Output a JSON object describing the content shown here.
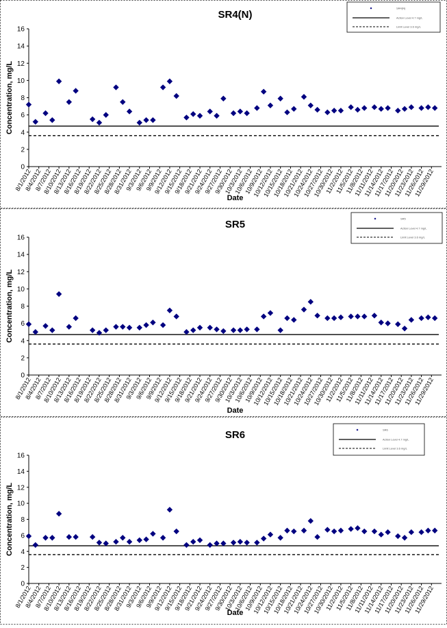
{
  "chart_data": [
    {
      "type": "scatter",
      "title": "SR4(N)",
      "xlabel": "Date",
      "ylabel": "Concentration, mg/L",
      "ylim": [
        0,
        16
      ],
      "yticks": [
        0,
        2,
        4,
        6,
        8,
        10,
        12,
        14,
        16
      ],
      "grid": false,
      "legend_position": "top-right",
      "marker_color": "#000080",
      "x_tick_labels": [
        "8/1/2012",
        "8/4/2012",
        "8/7/2012",
        "8/10/2012",
        "8/13/2012",
        "8/16/2012",
        "8/19/2012",
        "8/22/2012",
        "8/25/2012",
        "8/28/2012",
        "8/31/2012",
        "9/3/2012",
        "9/6/2012",
        "9/9/2012",
        "9/12/2012",
        "9/15/2012",
        "9/18/2012",
        "9/21/2012",
        "9/24/2012",
        "9/27/2012",
        "9/30/2012",
        "10/3/2012",
        "10/6/2012",
        "10/9/2012",
        "10/12/2012",
        "10/15/2012",
        "10/18/2012",
        "10/21/2012",
        "10/24/2012",
        "10/27/2012",
        "10/30/2012",
        "11/2/2012",
        "11/5/2012",
        "11/8/2012",
        "11/11/2012",
        "11/14/2012",
        "11/17/2012",
        "11/20/2012",
        "11/23/2012",
        "11/26/2012",
        "11/29/2012"
      ],
      "x_range": [
        "8/1/2012",
        "12/2/2012"
      ],
      "x": [
        "8/1/2012",
        "8/3/2012",
        "8/6/2012",
        "8/8/2012",
        "8/10/2012",
        "8/13/2012",
        "8/15/2012",
        "8/20/2012",
        "8/22/2012",
        "8/24/2012",
        "8/27/2012",
        "8/29/2012",
        "8/31/2012",
        "9/3/2012",
        "9/5/2012",
        "9/7/2012",
        "9/10/2012",
        "9/12/2012",
        "9/14/2012",
        "9/17/2012",
        "9/19/2012",
        "9/21/2012",
        "9/24/2012",
        "9/26/2012",
        "9/28/2012",
        "10/1/2012",
        "10/3/2012",
        "10/5/2012",
        "10/8/2012",
        "10/10/2012",
        "10/12/2012",
        "10/15/2012",
        "10/17/2012",
        "10/19/2012",
        "10/22/2012",
        "10/24/2012",
        "10/26/2012",
        "10/29/2012",
        "10/31/2012",
        "11/2/2012",
        "11/5/2012",
        "11/7/2012",
        "11/9/2012",
        "11/12/2012",
        "11/14/2012",
        "11/16/2012",
        "11/19/2012",
        "11/21/2012",
        "11/23/2012",
        "11/26/2012",
        "11/28/2012",
        "11/30/2012"
      ],
      "y": [
        7.2,
        5.2,
        6.2,
        5.4,
        9.9,
        7.5,
        8.8,
        5.5,
        5.1,
        6,
        9.2,
        7.5,
        6.4,
        5.1,
        5.4,
        5.4,
        9.2,
        9.9,
        8.2,
        5.7,
        6.1,
        5.9,
        6.4,
        5.9,
        7.9,
        6.2,
        6.4,
        6.2,
        6.8,
        8.7,
        7.1,
        7.9,
        6.3,
        6.7,
        8.1,
        7.1,
        6.6,
        6.3,
        6.5,
        6.5,
        6.9,
        6.6,
        6.8,
        6.9,
        6.7,
        6.8,
        6.5,
        6.7,
        6.9,
        6.8,
        6.9,
        6.8
      ],
      "reference_lines": [
        {
          "y": 4.7,
          "style": "solid"
        },
        {
          "y": 3.6,
          "style": "dashed"
        }
      ],
      "legend_entries": [
        "SR4(N)",
        "Action Level 4.7 mg/L",
        "Limit Level 3.6 mg/L"
      ]
    },
    {
      "type": "scatter",
      "title": "SR5",
      "xlabel": "Date",
      "ylabel": "Concentration, mg/L",
      "ylim": [
        0,
        16
      ],
      "yticks": [
        0,
        2,
        4,
        6,
        8,
        10,
        12,
        14,
        16
      ],
      "grid": false,
      "legend_position": "top-right",
      "marker_color": "#000080",
      "x_tick_labels": [
        "8/1/2012",
        "8/4/2012",
        "8/7/2012",
        "8/10/2012",
        "8/13/2012",
        "8/16/2012",
        "8/19/2012",
        "8/22/2012",
        "8/25/2012",
        "8/28/2012",
        "8/31/2012",
        "9/3/2012",
        "9/6/2012",
        "9/9/2012",
        "9/12/2012",
        "9/15/2012",
        "9/18/2012",
        "9/21/2012",
        "9/24/2012",
        "9/27/2012",
        "9/30/2012",
        "10/3/2012",
        "10/6/2012",
        "10/9/2012",
        "10/12/2012",
        "10/15/2012",
        "10/18/2012",
        "10/21/2012",
        "10/24/2012",
        "10/27/2012",
        "10/30/2012",
        "11/2/2012",
        "11/5/2012",
        "11/8/2012",
        "11/11/2012",
        "11/14/2012",
        "11/17/2012",
        "11/20/2012",
        "11/23/2012",
        "11/26/2012",
        "11/29/2012"
      ],
      "x_range": [
        "8/1/2012",
        "12/2/2012"
      ],
      "x": [
        "8/1/2012",
        "8/3/2012",
        "8/6/2012",
        "8/8/2012",
        "8/10/2012",
        "8/13/2012",
        "8/15/2012",
        "8/20/2012",
        "8/22/2012",
        "8/24/2012",
        "8/27/2012",
        "8/29/2012",
        "8/31/2012",
        "9/3/2012",
        "9/5/2012",
        "9/7/2012",
        "9/10/2012",
        "9/12/2012",
        "9/14/2012",
        "9/17/2012",
        "9/19/2012",
        "9/21/2012",
        "9/24/2012",
        "9/26/2012",
        "9/28/2012",
        "10/1/2012",
        "10/3/2012",
        "10/5/2012",
        "10/8/2012",
        "10/10/2012",
        "10/12/2012",
        "10/15/2012",
        "10/17/2012",
        "10/19/2012",
        "10/22/2012",
        "10/24/2012",
        "10/26/2012",
        "10/29/2012",
        "10/31/2012",
        "11/2/2012",
        "11/5/2012",
        "11/7/2012",
        "11/9/2012",
        "11/12/2012",
        "11/14/2012",
        "11/16/2012",
        "11/19/2012",
        "11/21/2012",
        "11/23/2012",
        "11/26/2012",
        "11/28/2012",
        "11/30/2012"
      ],
      "y": [
        5.9,
        5,
        5.7,
        5.2,
        9.4,
        5.6,
        6.6,
        5.2,
        4.9,
        5.2,
        5.6,
        5.6,
        5.5,
        5.5,
        5.8,
        6.1,
        5.8,
        7.5,
        6.8,
        5,
        5.2,
        5.5,
        5.5,
        5.3,
        5.1,
        5.2,
        5.2,
        5.3,
        5.3,
        6.8,
        7.2,
        5.2,
        6.6,
        6.4,
        7.6,
        8.5,
        6.9,
        6.6,
        6.6,
        6.7,
        6.8,
        6.8,
        6.8,
        6.9,
        6.1,
        6,
        5.9,
        5.4,
        6.4,
        6.6,
        6.7,
        6.6
      ],
      "reference_lines": [
        {
          "y": 4.7,
          "style": "solid"
        },
        {
          "y": 3.6,
          "style": "dashed"
        }
      ],
      "legend_entries": [
        "SR5",
        "Action Level 4.7 mg/L",
        "Limit Level 3.6 mg/L"
      ]
    },
    {
      "type": "scatter",
      "title": "SR6",
      "xlabel": "Date",
      "ylabel": "Concentration, mg/L",
      "ylim": [
        0,
        16
      ],
      "yticks": [
        0,
        2,
        4,
        6,
        8,
        10,
        12,
        14,
        16
      ],
      "grid": false,
      "legend_position": "top-right",
      "marker_color": "#000080",
      "x_tick_labels": [
        "8/1/2012",
        "8/4/2012",
        "8/7/2012",
        "8/10/2012",
        "8/13/2012",
        "8/16/2012",
        "8/19/2012",
        "8/22/2012",
        "8/25/2012",
        "8/28/2012",
        "8/31/2012",
        "9/3/2012",
        "9/6/2012",
        "9/9/2012",
        "9/12/2012",
        "9/15/2012",
        "9/18/2012",
        "9/21/2012",
        "9/24/2012",
        "9/27/2012",
        "9/30/2012",
        "10/3/2012",
        "10/6/2012",
        "10/9/2012",
        "10/12/2012",
        "10/15/2012",
        "10/18/2012",
        "10/21/2012",
        "10/24/2012",
        "10/27/2012",
        "10/30/2012",
        "11/2/2012",
        "11/5/2012",
        "11/8/2012",
        "11/11/2012",
        "11/14/2012",
        "11/17/2012",
        "11/20/2012",
        "11/23/2012",
        "11/26/2012",
        "11/29/2012"
      ],
      "x_range": [
        "8/1/2012",
        "12/2/2012"
      ],
      "x": [
        "8/1/2012",
        "8/3/2012",
        "8/6/2012",
        "8/8/2012",
        "8/10/2012",
        "8/13/2012",
        "8/15/2012",
        "8/20/2012",
        "8/22/2012",
        "8/24/2012",
        "8/27/2012",
        "8/29/2012",
        "8/31/2012",
        "9/3/2012",
        "9/5/2012",
        "9/7/2012",
        "9/10/2012",
        "9/12/2012",
        "9/14/2012",
        "9/17/2012",
        "9/19/2012",
        "9/21/2012",
        "9/24/2012",
        "9/26/2012",
        "9/28/2012",
        "10/1/2012",
        "10/3/2012",
        "10/5/2012",
        "10/8/2012",
        "10/10/2012",
        "10/12/2012",
        "10/15/2012",
        "10/17/2012",
        "10/19/2012",
        "10/22/2012",
        "10/24/2012",
        "10/26/2012",
        "10/29/2012",
        "10/31/2012",
        "11/2/2012",
        "11/5/2012",
        "11/7/2012",
        "11/9/2012",
        "11/12/2012",
        "11/14/2012",
        "11/16/2012",
        "11/19/2012",
        "11/21/2012",
        "11/23/2012",
        "11/26/2012",
        "11/28/2012",
        "11/30/2012"
      ],
      "y": [
        5.9,
        4.8,
        5.7,
        5.7,
        8.7,
        5.8,
        5.8,
        5.8,
        5.1,
        5,
        5.2,
        5.7,
        5.2,
        5.4,
        5.5,
        6.2,
        5.7,
        9.2,
        6.5,
        4.8,
        5.2,
        5.4,
        4.8,
        5,
        5,
        5.1,
        5.2,
        5.1,
        5.1,
        5.6,
        6.1,
        5.7,
        6.6,
        6.5,
        6.6,
        7.8,
        5.8,
        6.7,
        6.5,
        6.6,
        6.8,
        6.9,
        6.5,
        6.5,
        6.1,
        6.4,
        5.9,
        5.7,
        6.4,
        6.4,
        6.6,
        6.6
      ],
      "reference_lines": [
        {
          "y": 4.7,
          "style": "solid"
        },
        {
          "y": 3.6,
          "style": "dashed"
        }
      ],
      "legend_entries": [
        "SR6",
        "Action Level 4.7 mg/L",
        "Limit Level 3.6 mg/L"
      ]
    }
  ]
}
